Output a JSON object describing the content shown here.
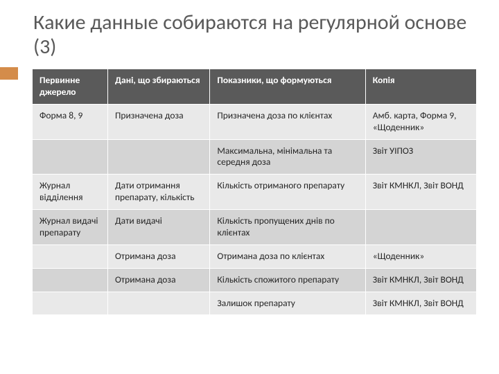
{
  "title": "Какие данные собираются на регулярной основе (3)",
  "colors": {
    "accent": "#d48c4a",
    "title_text": "#595959",
    "header_bg": "#5a5a5a",
    "header_text": "#ffffff",
    "row_light": "#e9e9e9",
    "row_dark": "#d4d4d4",
    "cell_text": "#262626",
    "border": "#ffffff",
    "background": "#ffffff"
  },
  "typography": {
    "title_fontsize_pt": 26,
    "table_fontsize_pt": 11,
    "font_family": "Calibri"
  },
  "layout": {
    "col_widths_pct": [
      17,
      23,
      35,
      25
    ]
  },
  "table": {
    "columns": [
      "Первинне джерело",
      "Дані, що збираються",
      "Показники, що формуються",
      "Копія"
    ],
    "rows": [
      {
        "band": "light",
        "cells": [
          "Форма 8, 9",
          "Призначена доза",
          "Призначена доза по клієнтах",
          "Амб. карта, Форма 9, «Щоденник»"
        ]
      },
      {
        "band": "dark",
        "cells": [
          "",
          "",
          "Максимальна, мінімальна та середня доза",
          "Звіт УІПОЗ"
        ]
      },
      {
        "band": "light",
        "cells": [
          "Журнал відділення",
          "Дати отримання препарату, кількість",
          "Кількість отриманого препарату",
          "Звіт КМНКЛ, Звіт ВОНД"
        ]
      },
      {
        "band": "dark",
        "cells": [
          "Журнал видачі препарату",
          "Дати видачі",
          "Кількість пропущених днів по клієнтах",
          ""
        ]
      },
      {
        "band": "light",
        "cells": [
          "",
          "Отримана доза",
          "Отримана доза по клієнтах",
          "«Щоденник»"
        ]
      },
      {
        "band": "dark",
        "cells": [
          "",
          "Отримана доза",
          "Кількість спожитого препарату",
          "Звіт КМНКЛ, Звіт ВОНД"
        ]
      },
      {
        "band": "light",
        "cells": [
          "",
          "",
          "Залишок препарату",
          "Звіт КМНКЛ, Звіт ВОНД"
        ]
      }
    ]
  }
}
